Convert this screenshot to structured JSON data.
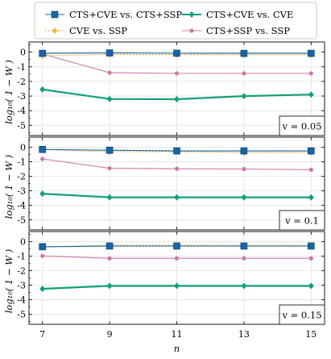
{
  "chart_data": {
    "type": "line",
    "x": [
      7,
      9,
      11,
      13,
      15
    ],
    "xlabel": "n",
    "ylabel": "log₁₀( 1 − W )",
    "ylim": [
      -5.7,
      0.7
    ],
    "yticks": [
      0,
      -1,
      -2,
      -3,
      -4,
      -5
    ],
    "grid": true,
    "legend": {
      "placement": "top",
      "columns": 2,
      "entries": [
        {
          "label": "CTS+CVE vs. CTS+SSP",
          "series": "cts_cve_vs_cts_ssp"
        },
        {
          "label": "CTS+CVE vs. CVE",
          "series": "cts_cve_vs_cve"
        },
        {
          "label": "CVE vs. SSP",
          "series": "cve_vs_ssp"
        },
        {
          "label": "CTS+SSP vs. SSP",
          "series": "cts_ssp_vs_ssp"
        }
      ]
    },
    "series_style": {
      "cts_cve_vs_cts_ssp": {
        "color": "#1565a8",
        "marker": "square",
        "dash": "solid"
      },
      "cts_cve_vs_cve": {
        "color": "#12a07a",
        "marker": "diamond",
        "dash": "solid"
      },
      "cve_vs_ssp": {
        "color": "#e8a317",
        "marker": "plus",
        "dash": "dotted"
      },
      "cts_ssp_vs_ssp": {
        "color": "#cc79a7",
        "marker": "circle",
        "dash": "solid"
      }
    },
    "panels": [
      {
        "label": "v = 0.05",
        "series": {
          "cts_cve_vs_cts_ssp": [
            -0.08,
            -0.05,
            -0.07,
            -0.08,
            -0.08
          ],
          "cts_cve_vs_cve": [
            -2.55,
            -3.2,
            -3.22,
            -3.0,
            -2.9
          ],
          "cve_vs_ssp": [
            -0.25,
            -0.15,
            -0.16,
            -0.17,
            -0.17
          ],
          "cts_ssp_vs_ssp": [
            -0.12,
            -1.4,
            -1.45,
            -1.45,
            -1.45
          ]
        }
      },
      {
        "label": "v = 0.1",
        "series": {
          "cts_cve_vs_cts_ssp": [
            -0.15,
            -0.2,
            -0.25,
            -0.25,
            -0.25
          ],
          "cts_cve_vs_cve": [
            -3.2,
            -3.45,
            -3.45,
            -3.45,
            -3.45
          ],
          "cve_vs_ssp": [
            -0.15,
            -0.3,
            -0.3,
            -0.35,
            -0.35
          ],
          "cts_ssp_vs_ssp": [
            -0.8,
            -1.45,
            -1.48,
            -1.5,
            -1.55
          ]
        }
      },
      {
        "label": "v = 0.15",
        "series": {
          "cts_cve_vs_cts_ssp": [
            -0.35,
            -0.3,
            -0.3,
            -0.3,
            -0.3
          ],
          "cts_cve_vs_cve": [
            -3.25,
            -3.05,
            -3.05,
            -3.05,
            -3.05
          ],
          "cve_vs_ssp": [
            -0.35,
            -0.25,
            -0.25,
            -0.25,
            -0.25
          ],
          "cts_ssp_vs_ssp": [
            -0.98,
            -1.15,
            -1.15,
            -1.15,
            -1.15
          ]
        }
      }
    ]
  }
}
